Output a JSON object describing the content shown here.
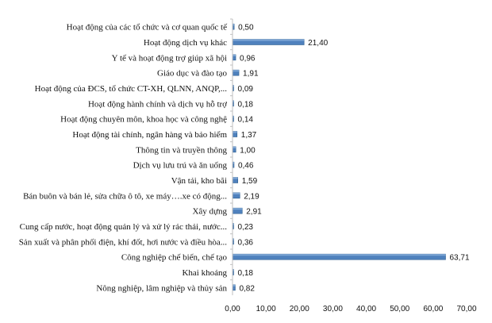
{
  "chart_data": {
    "type": "bar",
    "orientation": "horizontal",
    "categories": [
      "Hoạt động của các tổ chức và cơ quan quốc tế",
      "Hoạt động dịch vụ khác",
      "Y tế và hoạt động trợ giúp xã hội",
      "Giáo dục và đào tạo",
      "Hoạt động của ĐCS, tổ chức CT-XH, QLNN, ANQP,...",
      "Hoạt động hành chính và dịch vụ hỗ trợ",
      "Hoạt động chuyên môn, khoa học và công nghệ",
      "Hoạt động tài chính, ngân hàng và bảo hiểm",
      "Thông tin và truyền thông",
      "Dịch vụ lưu trú và ăn uống",
      "Vận tải, kho bãi",
      "Bán buôn và bán lẻ, sửa chữa ô tô, xe máy….xe có động...",
      "Xây dựng",
      "Cung cấp nước, hoạt động quản lý và xử lý rác thải, nước...",
      "Sản xuất và phân phối điện, khí đốt, hơi nước và điều hòa...",
      "Công nghiệp chế biến, chế tạo",
      "Khai khoáng",
      "Nông nghiệp, lâm nghiệp và thủy sản"
    ],
    "values": [
      0.5,
      21.4,
      0.96,
      1.91,
      0.09,
      0.18,
      0.14,
      1.37,
      1.0,
      0.46,
      1.59,
      2.19,
      2.91,
      0.23,
      0.36,
      63.71,
      0.18,
      0.82
    ],
    "value_labels": [
      "0,50",
      "21,40",
      "0,96",
      "1,91",
      "0,09",
      "0,18",
      "0,14",
      "1,37",
      "1,00",
      "0,46",
      "1,59",
      "2,19",
      "2,91",
      "0,23",
      "0,36",
      "63,71",
      "0,18",
      "0,82"
    ],
    "xlim": [
      0,
      70
    ],
    "x_ticks": [
      0,
      10,
      20,
      30,
      40,
      50,
      60,
      70
    ],
    "x_tick_labels": [
      "0,00",
      "10,00",
      "20,00",
      "30,00",
      "40,00",
      "50,00",
      "60,00",
      "70,00"
    ],
    "title": "",
    "xlabel": "",
    "ylabel": "",
    "grid": false,
    "legend": "none",
    "bar_color": "#4f81bd",
    "bar_edge_color": "#2e5f8e"
  }
}
